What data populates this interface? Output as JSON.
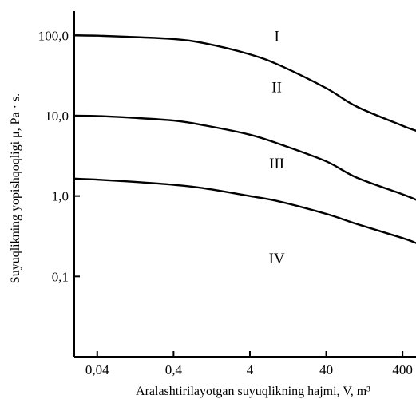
{
  "chart_data": {
    "type": "line",
    "title": "",
    "xlabel": "Aralashtirilayotgan suyuqlikning hajmi, V, m³",
    "ylabel": "Suyuqlikning yopishqoqligi μ, Pa · s.",
    "x_scale": "log",
    "y_scale": "log",
    "xlim": [
      0.02,
      600
    ],
    "ylim": [
      0.01,
      200
    ],
    "grid": false,
    "x_ticks": [
      {
        "value": 0.04,
        "label": "0,04"
      },
      {
        "value": 0.4,
        "label": "0,4"
      },
      {
        "value": 4,
        "label": "4"
      },
      {
        "value": 40,
        "label": "40"
      },
      {
        "value": 400,
        "label": "400"
      }
    ],
    "y_ticks": [
      {
        "value": 100,
        "label": "100,0"
      },
      {
        "value": 10,
        "label": "10,0"
      },
      {
        "value": 1,
        "label": "1,0"
      },
      {
        "value": 0.1,
        "label": "0,1"
      }
    ],
    "series": [
      {
        "x": [
          0.02,
          0.04,
          0.1,
          0.4,
          1,
          4,
          10,
          40,
          100,
          400,
          600
        ],
        "y": [
          100,
          99,
          96,
          90,
          80,
          58,
          42,
          22,
          13,
          7.5,
          6.5
        ]
      },
      {
        "x": [
          0.02,
          0.04,
          0.1,
          0.4,
          1,
          4,
          10,
          40,
          100,
          400,
          600
        ],
        "y": [
          10,
          9.9,
          9.5,
          8.7,
          7.6,
          5.8,
          4.4,
          2.7,
          1.7,
          1.05,
          0.9
        ]
      },
      {
        "x": [
          0.02,
          0.04,
          0.1,
          0.4,
          1,
          4,
          10,
          40,
          100,
          400,
          600
        ],
        "y": [
          1.65,
          1.6,
          1.52,
          1.38,
          1.25,
          1.0,
          0.85,
          0.6,
          0.45,
          0.3,
          0.26
        ]
      }
    ],
    "region_labels": [
      {
        "text": "I",
        "x": 9,
        "y": 100
      },
      {
        "text": "II",
        "x": 9,
        "y": 23
      },
      {
        "text": "III",
        "x": 9,
        "y": 2.6
      },
      {
        "text": "IV",
        "x": 9,
        "y": 0.17
      }
    ]
  }
}
